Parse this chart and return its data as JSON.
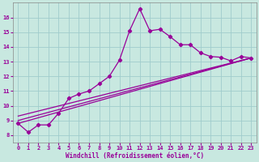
{
  "xlabel": "Windchill (Refroidissement éolien,°C)",
  "ylim": [
    7.5,
    17.0
  ],
  "xlim": [
    -0.5,
    23.5
  ],
  "yticks": [
    8,
    9,
    10,
    11,
    12,
    13,
    14,
    15,
    16
  ],
  "xticks": [
    0,
    1,
    2,
    3,
    4,
    5,
    6,
    7,
    8,
    9,
    10,
    11,
    12,
    13,
    14,
    15,
    16,
    17,
    18,
    19,
    20,
    21,
    22,
    23
  ],
  "bg_color": "#c8e8e0",
  "line_color": "#990099",
  "grid_color": "#a0cccc",
  "line1_x": [
    0,
    1,
    2,
    3,
    4,
    5,
    6,
    7,
    8,
    9,
    10,
    11,
    12,
    13,
    14,
    15,
    16,
    17,
    18,
    19,
    20,
    21,
    22,
    23
  ],
  "line1_y": [
    8.8,
    8.2,
    8.7,
    8.7,
    9.5,
    10.5,
    10.8,
    11.0,
    11.5,
    12.0,
    13.1,
    15.1,
    16.6,
    15.1,
    15.2,
    14.7,
    14.15,
    14.15,
    13.6,
    13.35,
    13.3,
    13.05,
    13.35,
    13.25
  ],
  "line2_x": [
    0,
    23
  ],
  "line2_y": [
    8.8,
    13.25
  ],
  "line3_x": [
    0,
    23
  ],
  "line3_y": [
    9.0,
    13.25
  ],
  "line4_x": [
    0,
    23
  ],
  "line4_y": [
    9.3,
    13.25
  ]
}
